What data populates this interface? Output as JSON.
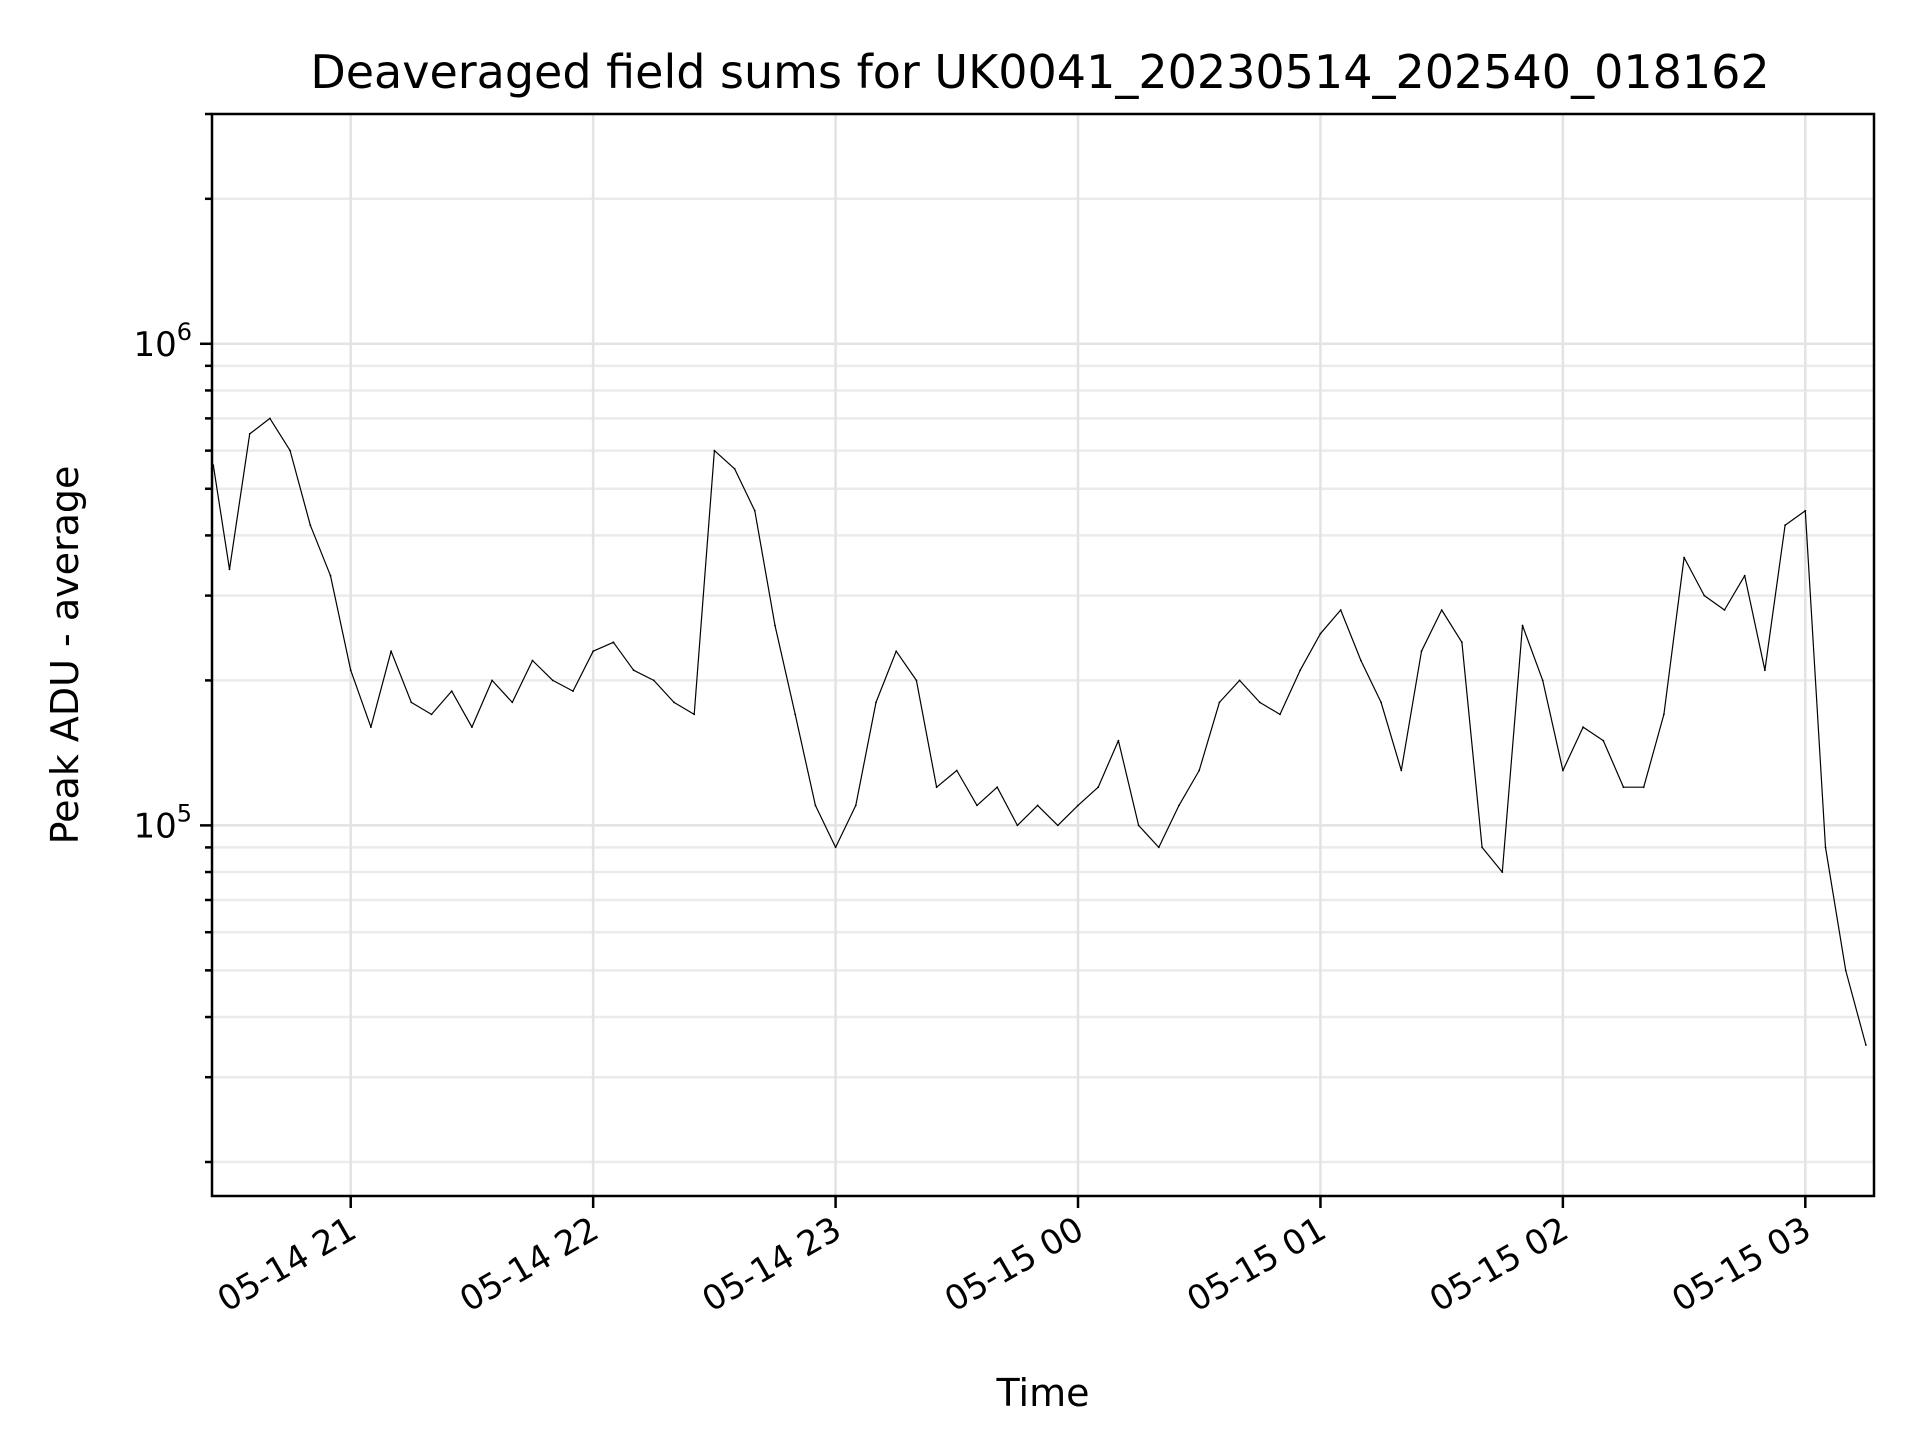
{
  "chart_data": {
    "type": "line",
    "title": "Deaveraged field sums for UK0041_20230514_202540_018162",
    "xlabel": "Time",
    "ylabel": "Peak ADU - average",
    "y_scale": "log",
    "ylim": [
      17000,
      3000000
    ],
    "xlim": [
      "2023-05-14 20:25:40",
      "2023-05-15 03:17:00"
    ],
    "grid": true,
    "x_ticks": [
      {
        "value": "2023-05-14 21:00",
        "label": "05-14 21"
      },
      {
        "value": "2023-05-14 22:00",
        "label": "05-14 22"
      },
      {
        "value": "2023-05-14 23:00",
        "label": "05-14 23"
      },
      {
        "value": "2023-05-15 00:00",
        "label": "05-15 00"
      },
      {
        "value": "2023-05-15 01:00",
        "label": "05-15 01"
      },
      {
        "value": "2023-05-15 02:00",
        "label": "05-15 02"
      },
      {
        "value": "2023-05-15 03:00",
        "label": "05-15 03"
      }
    ],
    "y_ticks": [
      {
        "value": 100000,
        "base": "10",
        "exp": "5"
      },
      {
        "value": 1000000,
        "base": "10",
        "exp": "6"
      }
    ],
    "series": [
      {
        "color": "#000000",
        "x": [
          "2023-05-14 20:26",
          "2023-05-14 20:30",
          "2023-05-14 20:35",
          "2023-05-14 20:40",
          "2023-05-14 20:45",
          "2023-05-14 20:50",
          "2023-05-14 20:55",
          "2023-05-14 21:00",
          "2023-05-14 21:05",
          "2023-05-14 21:10",
          "2023-05-14 21:15",
          "2023-05-14 21:20",
          "2023-05-14 21:25",
          "2023-05-14 21:30",
          "2023-05-14 21:35",
          "2023-05-14 21:40",
          "2023-05-14 21:45",
          "2023-05-14 21:50",
          "2023-05-14 21:55",
          "2023-05-14 22:00",
          "2023-05-14 22:05",
          "2023-05-14 22:10",
          "2023-05-14 22:15",
          "2023-05-14 22:20",
          "2023-05-14 22:25",
          "2023-05-14 22:30",
          "2023-05-14 22:35",
          "2023-05-14 22:40",
          "2023-05-14 22:45",
          "2023-05-14 22:50",
          "2023-05-14 22:55",
          "2023-05-14 23:00",
          "2023-05-14 23:05",
          "2023-05-14 23:10",
          "2023-05-14 23:15",
          "2023-05-14 23:20",
          "2023-05-14 23:25",
          "2023-05-14 23:30",
          "2023-05-14 23:35",
          "2023-05-14 23:40",
          "2023-05-14 23:45",
          "2023-05-14 23:50",
          "2023-05-14 23:55",
          "2023-05-15 00:00",
          "2023-05-15 00:05",
          "2023-05-15 00:10",
          "2023-05-15 00:15",
          "2023-05-15 00:20",
          "2023-05-15 00:25",
          "2023-05-15 00:30",
          "2023-05-15 00:35",
          "2023-05-15 00:40",
          "2023-05-15 00:45",
          "2023-05-15 00:50",
          "2023-05-15 00:55",
          "2023-05-15 01:00",
          "2023-05-15 01:05",
          "2023-05-15 01:10",
          "2023-05-15 01:15",
          "2023-05-15 01:20",
          "2023-05-15 01:25",
          "2023-05-15 01:30",
          "2023-05-15 01:35",
          "2023-05-15 01:40",
          "2023-05-15 01:45",
          "2023-05-15 01:50",
          "2023-05-15 01:55",
          "2023-05-15 02:00",
          "2023-05-15 02:05",
          "2023-05-15 02:10",
          "2023-05-15 02:15",
          "2023-05-15 02:20",
          "2023-05-15 02:25",
          "2023-05-15 02:30",
          "2023-05-15 02:35",
          "2023-05-15 02:40",
          "2023-05-15 02:45",
          "2023-05-15 02:50",
          "2023-05-15 02:55",
          "2023-05-15 03:00",
          "2023-05-15 03:05",
          "2023-05-15 03:10",
          "2023-05-15 03:15"
        ],
        "y": [
          560000,
          340000,
          650000,
          700000,
          600000,
          420000,
          330000,
          210000,
          160000,
          230000,
          180000,
          170000,
          190000,
          160000,
          200000,
          180000,
          220000,
          200000,
          190000,
          230000,
          240000,
          210000,
          200000,
          180000,
          170000,
          600000,
          550000,
          450000,
          260000,
          170000,
          110000,
          90000,
          110000,
          180000,
          230000,
          200000,
          120000,
          130000,
          110000,
          120000,
          100000,
          110000,
          100000,
          110000,
          120000,
          150000,
          100000,
          90000,
          110000,
          130000,
          180000,
          200000,
          180000,
          170000,
          210000,
          250000,
          280000,
          220000,
          180000,
          130000,
          230000,
          280000,
          240000,
          90000,
          80000,
          260000,
          200000,
          130000,
          160000,
          150000,
          120000,
          120000,
          170000,
          360000,
          300000,
          280000,
          330000,
          210000,
          420000,
          450000,
          90000,
          50000,
          35000
        ]
      }
    ]
  }
}
